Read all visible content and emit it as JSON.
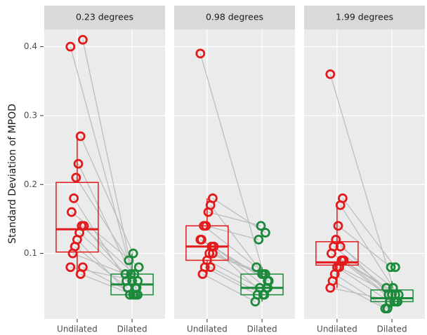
{
  "chart_data": {
    "type": "box",
    "ylabel": "Standard Deviation of MPOD",
    "ylim": [
      0.005,
      0.425
    ],
    "yticks": [
      0.1,
      0.2,
      0.3,
      0.4
    ],
    "grid": true,
    "panels": [
      {
        "title": "0.23 degrees",
        "categories": [
          "Undilated",
          "Dilated"
        ],
        "boxes": [
          {
            "whisker_low": 0.07,
            "q1": 0.102,
            "median": 0.135,
            "q3": 0.203,
            "whisker_high": 0.27
          },
          {
            "whisker_low": 0.04,
            "q1": 0.04,
            "median": 0.055,
            "q3": 0.07,
            "whisker_high": 0.1
          }
        ],
        "series": [
          {
            "name": "Undilated",
            "color": "#e31a1c",
            "values": [
              0.4,
              0.41,
              0.27,
              0.23,
              0.21,
              0.18,
              0.16,
              0.14,
              0.14,
              0.13,
              0.12,
              0.11,
              0.1,
              0.08,
              0.08,
              0.07
            ]
          },
          {
            "name": "Dilated",
            "color": "#1b8a3a",
            "values": [
              0.04,
              0.05,
              0.1,
              0.07,
              0.09,
              0.06,
              0.08,
              0.05,
              0.07,
              0.06,
              0.04,
              0.05,
              0.07,
              0.06,
              0.04,
              0.04
            ]
          }
        ]
      },
      {
        "title": "0.98 degrees",
        "categories": [
          "Undilated",
          "Dilated"
        ],
        "boxes": [
          {
            "whisker_low": 0.07,
            "q1": 0.09,
            "median": 0.11,
            "q3": 0.14,
            "whisker_high": 0.18
          },
          {
            "whisker_low": 0.03,
            "q1": 0.04,
            "median": 0.05,
            "q3": 0.07,
            "whisker_high": 0.08
          }
        ],
        "series": [
          {
            "name": "Undilated",
            "color": "#e31a1c",
            "values": [
              0.39,
              0.18,
              0.17,
              0.16,
              0.14,
              0.14,
              0.12,
              0.11,
              0.11,
              0.1,
              0.09,
              0.08,
              0.07,
              0.12,
              0.1,
              0.08
            ]
          },
          {
            "name": "Dilated",
            "color": "#1b8a3a",
            "values": [
              0.05,
              0.13,
              0.07,
              0.14,
              0.12,
              0.08,
              0.06,
              0.05,
              0.04,
              0.07,
              0.05,
              0.04,
              0.03,
              0.06,
              0.07,
              0.04
            ]
          }
        ]
      },
      {
        "title": "1.99 degrees",
        "categories": [
          "Undilated",
          "Dilated"
        ],
        "boxes": [
          {
            "whisker_low": 0.05,
            "q1": 0.083,
            "median": 0.087,
            "q3": 0.117,
            "whisker_high": 0.17
          },
          {
            "whisker_low": 0.02,
            "q1": 0.03,
            "median": 0.035,
            "q3": 0.047,
            "whisker_high": 0.06
          }
        ],
        "series": [
          {
            "name": "Undilated",
            "color": "#e31a1c",
            "values": [
              0.36,
              0.18,
              0.17,
              0.14,
              0.12,
              0.11,
              0.1,
              0.09,
              0.09,
              0.08,
              0.08,
              0.07,
              0.06,
              0.05,
              0.09,
              0.11
            ]
          },
          {
            "name": "Dilated",
            "color": "#1b8a3a",
            "values": [
              0.03,
              0.08,
              0.05,
              0.08,
              0.04,
              0.05,
              0.04,
              0.03,
              0.03,
              0.04,
              0.03,
              0.02,
              0.02,
              0.03,
              0.04,
              0.05
            ]
          }
        ]
      }
    ]
  }
}
